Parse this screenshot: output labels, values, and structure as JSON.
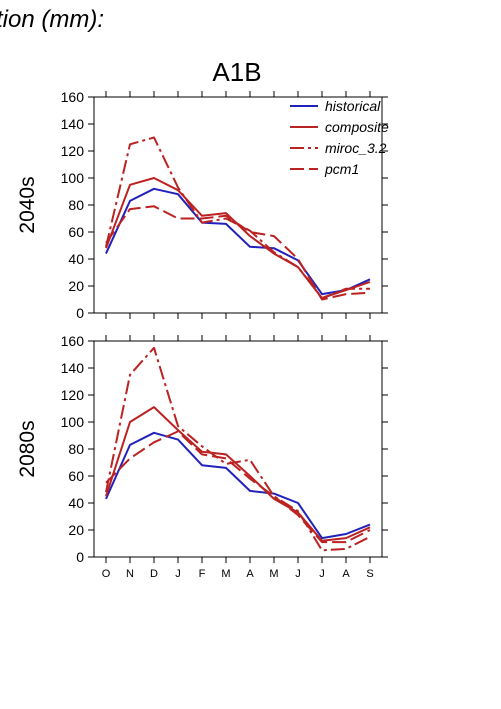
{
  "header_text": "tion (mm):",
  "colors": {
    "historical": "#2222bb",
    "projection": "#bb2222"
  },
  "chart_data": {
    "type": "line",
    "title": "A1B",
    "categories": [
      "O",
      "N",
      "D",
      "J",
      "F",
      "M",
      "A",
      "M",
      "J",
      "J",
      "A",
      "S"
    ],
    "ylim": [
      0,
      160
    ],
    "yticks": [
      0,
      20,
      40,
      60,
      80,
      100,
      120,
      140,
      160
    ],
    "legend_position": "top-right",
    "legend": [
      "historical",
      "composite",
      "miroc_3.2",
      "pcm1"
    ],
    "panels": [
      {
        "label": "2040s",
        "series": [
          {
            "name": "historical",
            "style": "solid",
            "color": "#2222bb",
            "values": [
              44,
              83,
              92,
              88,
              67,
              66,
              49,
              48,
              39,
              14,
              17,
              25
            ]
          },
          {
            "name": "composite",
            "style": "solid",
            "color": "#bb2222",
            "values": [
              48,
              95,
              100,
              91,
              72,
              74,
              57,
              44,
              34,
              11,
              17,
              23
            ]
          },
          {
            "name": "miroc_3.2",
            "style": "dashdot",
            "color": "#bb2222",
            "values": [
              49,
              125,
              130,
              93,
              67,
              70,
              61,
              45,
              34,
              11,
              18,
              18
            ]
          },
          {
            "name": "pcm1",
            "style": "dashed",
            "color": "#bb2222",
            "values": [
              52,
              77,
              79,
              70,
              70,
              72,
              60,
              57,
              40,
              10,
              14,
              15
            ]
          }
        ]
      },
      {
        "label": "2080s",
        "series": [
          {
            "name": "historical",
            "style": "solid",
            "color": "#2222bb",
            "values": [
              43,
              83,
              92,
              87,
              68,
              66,
              49,
              47,
              40,
              14,
              17,
              24
            ]
          },
          {
            "name": "composite",
            "style": "solid",
            "color": "#bb2222",
            "values": [
              45,
              100,
              111,
              94,
              78,
              76,
              60,
              43,
              33,
              12,
              14,
              22
            ]
          },
          {
            "name": "miroc_3.2",
            "style": "dashdot",
            "color": "#bb2222",
            "values": [
              48,
              135,
              155,
              97,
              82,
              69,
              72,
              45,
              34,
              5,
              6,
              15
            ]
          },
          {
            "name": "pcm1",
            "style": "dashed",
            "color": "#bb2222",
            "values": [
              55,
              73,
              85,
              93,
              76,
              73,
              58,
              45,
              31,
              11,
              11,
              20
            ]
          }
        ]
      }
    ]
  }
}
